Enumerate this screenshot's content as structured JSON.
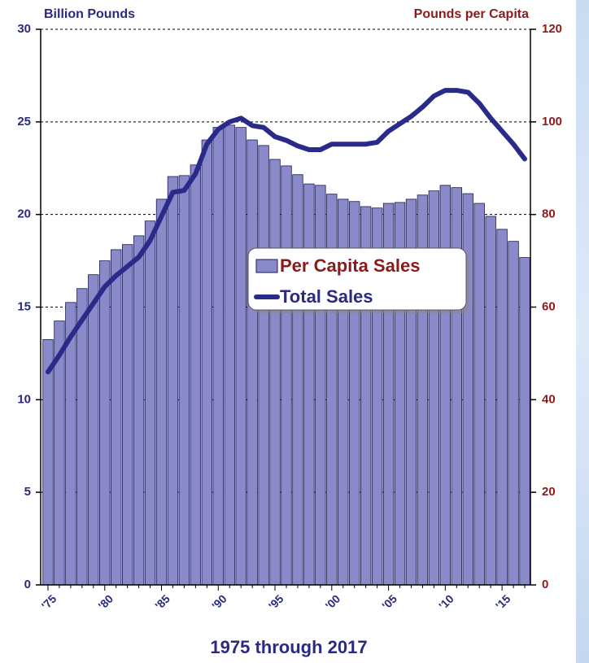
{
  "chart_data": {
    "type": "bar",
    "y_label": "Billion Pounds",
    "y2_label": "Pounds per Capita",
    "x_label": "1975 through 2017",
    "categories": [
      "'75",
      null,
      null,
      null,
      null,
      "'80",
      null,
      null,
      null,
      null,
      "'85",
      null,
      null,
      null,
      null,
      "'90",
      null,
      null,
      null,
      null,
      "'95",
      null,
      null,
      null,
      null,
      "'00",
      null,
      null,
      null,
      null,
      "'05",
      null,
      null,
      null,
      null,
      "'10",
      null,
      null,
      null,
      null,
      "'15",
      null,
      null
    ],
    "series": [
      {
        "name": "Per Capita Sales",
        "type": "bar",
        "axis": "y2",
        "color": "#8a8acb",
        "values": [
          53,
          57,
          61,
          64,
          67,
          70,
          72.4,
          73.5,
          75.4,
          78.6,
          83.3,
          88.2,
          88.4,
          90.7,
          96.1,
          98.8,
          99.3,
          98.8,
          96.1,
          94.9,
          91.9,
          90.5,
          88.6,
          86.6,
          86.3,
          84.4,
          83.3,
          82.8,
          81.7,
          81.4,
          82.4,
          82.6,
          83.3,
          84.2,
          85.1,
          86.3,
          85.8,
          84.5,
          82.4,
          79.6,
          76.8,
          74.2,
          70.7
        ]
      },
      {
        "name": "Total Sales",
        "type": "line",
        "axis": "y",
        "color": "#2a2a8a",
        "values": [
          11.5,
          12.4,
          13.4,
          14.3,
          15.2,
          16.1,
          16.7,
          17.2,
          17.7,
          18.6,
          19.9,
          21.2,
          21.3,
          22.2,
          23.8,
          24.6,
          25.0,
          25.2,
          24.8,
          24.7,
          24.2,
          24.0,
          23.7,
          23.5,
          23.5,
          23.8,
          23.8,
          23.8,
          23.8,
          23.9,
          24.5,
          24.9,
          25.3,
          25.8,
          26.4,
          26.7,
          26.7,
          26.6,
          26.0,
          25.2,
          24.5,
          23.8,
          23.0
        ]
      }
    ],
    "ylim": [
      0,
      30
    ],
    "yticks": [
      0,
      5,
      10,
      15,
      20,
      25,
      30
    ],
    "y2lim": [
      0,
      120
    ],
    "y2ticks": [
      0,
      20,
      40,
      60,
      80,
      100,
      120
    ],
    "grid": true
  }
}
